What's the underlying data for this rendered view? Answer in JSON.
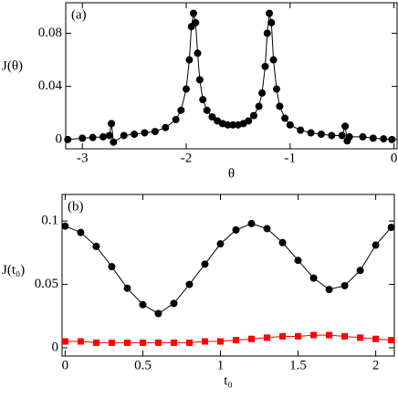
{
  "chart_data": [
    {
      "type": "line",
      "panel_label": "(a)",
      "x_label": "θ",
      "y_label": "J(θ)",
      "xlim": [
        -3.16,
        0.03
      ],
      "ylim": [
        -0.007,
        0.103
      ],
      "xticks": [
        -3,
        -2,
        -1,
        0
      ],
      "yticks": [
        0,
        0.04,
        0.08
      ],
      "x": [
        -3.14,
        -3.0,
        -2.9,
        -2.8,
        -2.74,
        -2.72,
        -2.7,
        -2.6,
        -2.5,
        -2.4,
        -2.3,
        -2.2,
        -2.1,
        -2.05,
        -2.0,
        -1.97,
        -1.95,
        -1.93,
        -1.91,
        -1.89,
        -1.87,
        -1.84,
        -1.8,
        -1.75,
        -1.7,
        -1.65,
        -1.6,
        -1.55,
        -1.5,
        -1.45,
        -1.4,
        -1.35,
        -1.3,
        -1.27,
        -1.24,
        -1.22,
        -1.2,
        -1.18,
        -1.16,
        -1.13,
        -1.1,
        -1.05,
        -1.0,
        -0.9,
        -0.8,
        -0.7,
        -0.6,
        -0.5,
        -0.47,
        -0.45,
        -0.43,
        -0.3,
        -0.2,
        -0.1,
        -0.02
      ],
      "series": [
        {
          "color": "#000000",
          "marker": "circle",
          "values": [
            0.0,
            0.001,
            0.0015,
            0.002,
            0.003,
            0.012,
            -0.002,
            0.003,
            0.004,
            0.005,
            0.006,
            0.009,
            0.015,
            0.022,
            0.038,
            0.06,
            0.085,
            0.095,
            0.088,
            0.065,
            0.045,
            0.03,
            0.022,
            0.017,
            0.014,
            0.012,
            0.011,
            0.011,
            0.011,
            0.012,
            0.014,
            0.018,
            0.025,
            0.035,
            0.055,
            0.08,
            0.095,
            0.088,
            0.06,
            0.038,
            0.025,
            0.016,
            0.011,
            0.007,
            0.005,
            0.004,
            0.003,
            0.003,
            0.01,
            -0.001,
            0.002,
            0.002,
            0.001,
            0.0005,
            0.0
          ]
        }
      ]
    },
    {
      "type": "line",
      "panel_label": "(b)",
      "x_label": "t₀",
      "y_label": "J(t₀)",
      "xlim": [
        -0.02,
        2.12
      ],
      "ylim": [
        -0.0065,
        0.121
      ],
      "xticks": [
        0,
        0.5,
        1,
        1.5,
        2
      ],
      "yticks": [
        0,
        0.05,
        0.1
      ],
      "x": [
        0,
        0.1,
        0.2,
        0.3,
        0.4,
        0.5,
        0.6,
        0.7,
        0.8,
        0.9,
        1.0,
        1.1,
        1.2,
        1.3,
        1.4,
        1.5,
        1.6,
        1.7,
        1.8,
        1.9,
        2.0,
        2.1
      ],
      "series": [
        {
          "color": "#000000",
          "marker": "circle",
          "values": [
            0.096,
            0.091,
            0.08,
            0.064,
            0.047,
            0.034,
            0.027,
            0.035,
            0.05,
            0.066,
            0.082,
            0.093,
            0.098,
            0.094,
            0.083,
            0.069,
            0.055,
            0.046,
            0.049,
            0.061,
            0.081,
            0.095
          ]
        },
        {
          "color": "#ff0000",
          "marker": "square",
          "values": [
            0.005,
            0.005,
            0.004,
            0.004,
            0.004,
            0.004,
            0.004,
            0.004,
            0.004,
            0.005,
            0.005,
            0.006,
            0.007,
            0.008,
            0.009,
            0.009,
            0.01,
            0.01,
            0.009,
            0.008,
            0.007,
            0.006
          ]
        }
      ]
    }
  ]
}
